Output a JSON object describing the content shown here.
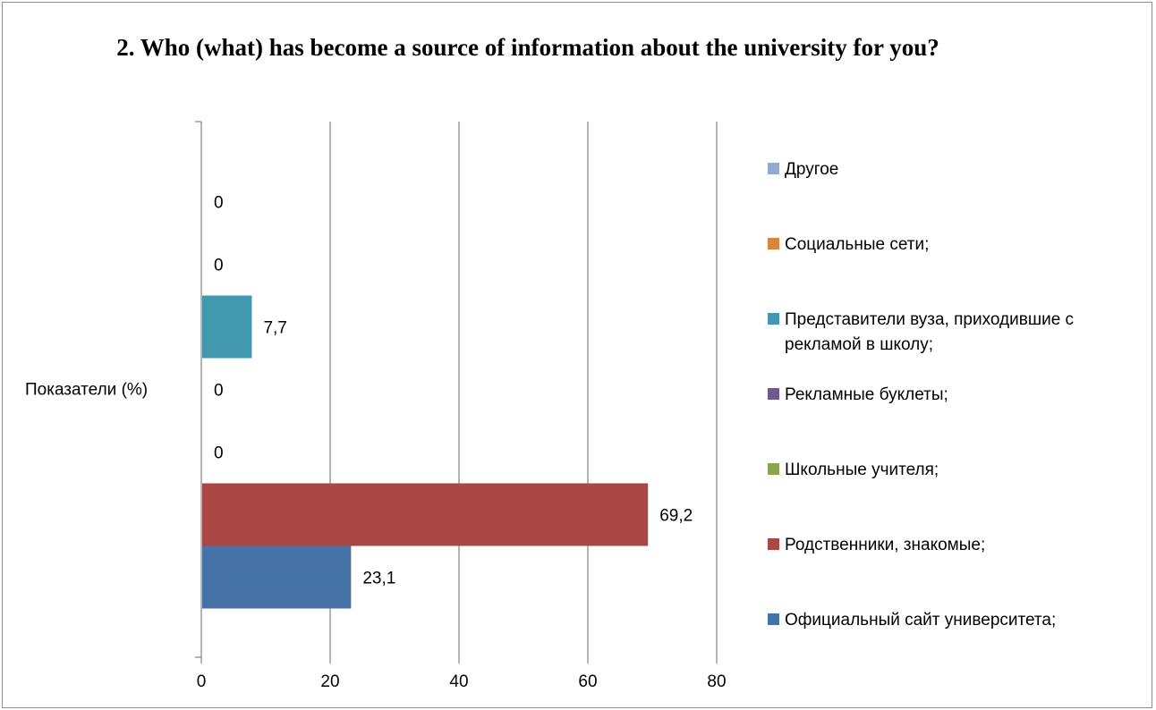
{
  "chart_data": {
    "type": "bar",
    "orientation": "horizontal",
    "title": "2. Who (what) has become a source of information about the university for you?",
    "categories": [
      "Показатели (%)"
    ],
    "series": [
      {
        "name": "Официальный сайт университета;",
        "values": [
          23.1
        ],
        "label": "23,1",
        "color": "#4572A7"
      },
      {
        "name": "Родственники, знакомые;",
        "values": [
          69.2
        ],
        "label": "69,2",
        "color": "#AA4643"
      },
      {
        "name": "Школьные учителя;",
        "values": [
          0
        ],
        "label": "0",
        "color": "#89A54E"
      },
      {
        "name": "Рекламные буклеты;",
        "values": [
          0
        ],
        "label": "0",
        "color": "#71588F"
      },
      {
        "name": "Представители вуза, приходившие с рекламой в школу;",
        "values": [
          7.7
        ],
        "label": "7,7",
        "color": "#4198AF"
      },
      {
        "name": "Социальные сети;",
        "values": [
          0
        ],
        "label": "0",
        "color": "#DB843D"
      },
      {
        "name": "Другое",
        "values": [
          0
        ],
        "label": "0",
        "color": "#93A9CF"
      }
    ],
    "xlim": [
      0,
      80
    ],
    "xticks": [
      "0",
      "20",
      "40",
      "60",
      "80"
    ],
    "grid": true,
    "legend_position": "right"
  }
}
